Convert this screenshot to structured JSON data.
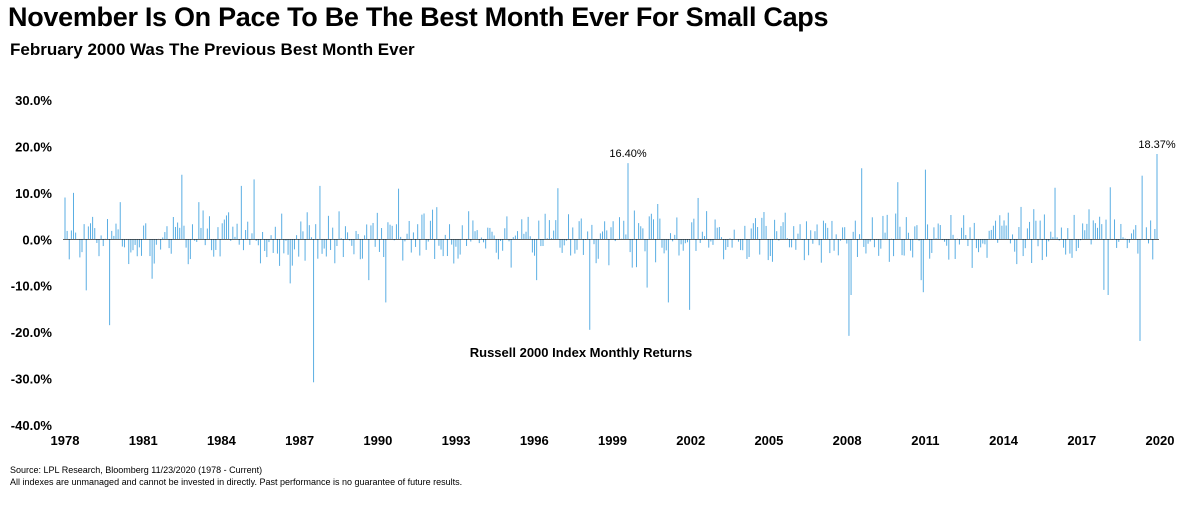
{
  "header": {
    "title": "November Is On Pace To Be The Best Month Ever For Small Caps",
    "subtitle": "February 2000 Was The Previous Best Month Ever"
  },
  "footer": {
    "source": "Source: LPL Research, Bloomberg 11/23/2020 (1978 - Current)",
    "disclaimer": "All indexes are unmanaged and cannot be invested in directly. Past performance is no guarantee of future results."
  },
  "colors": {
    "bar": "#5aaee3",
    "text": "#000000"
  },
  "chart_data": {
    "type": "bar",
    "series_label": "Russell 2000 Index Monthly Returns",
    "ylim": [
      -40,
      30
    ],
    "y_ticks": [
      30,
      20,
      10,
      0,
      -10,
      -20,
      -30,
      -40
    ],
    "y_tick_labels": [
      "30.0%",
      "20.0%",
      "10.0%",
      "0.0%",
      "-10.0%",
      "-20.0%",
      "-30.0%",
      "-40.0%"
    ],
    "x_tick_labels": [
      "1978",
      "1981",
      "1984",
      "1987",
      "1990",
      "1993",
      "1996",
      "1999",
      "2002",
      "2005",
      "2008",
      "2011",
      "2014",
      "2017",
      "2020"
    ],
    "x_range": [
      "1978-01",
      "2020-11"
    ],
    "grid": false,
    "annotations": [
      {
        "date": "2000-02",
        "value": 16.4,
        "text": "16.40%"
      },
      {
        "date": "2020-11",
        "value": 18.37,
        "text": "18.37%"
      }
    ],
    "key_values": [
      {
        "date": "1978-01",
        "value": 9.0
      },
      {
        "date": "1978-05",
        "value": 10.0
      },
      {
        "date": "1978-11",
        "value": -11.0
      },
      {
        "date": "1979-10",
        "value": -18.5
      },
      {
        "date": "1980-03",
        "value": 8.0
      },
      {
        "date": "1981-06",
        "value": -8.5
      },
      {
        "date": "1982-08",
        "value": 13.9
      },
      {
        "date": "1983-04",
        "value": 8.0
      },
      {
        "date": "1984-12",
        "value": 11.5
      },
      {
        "date": "1985-06",
        "value": 12.9
      },
      {
        "date": "1986-11",
        "value": -9.5
      },
      {
        "date": "1987-10",
        "value": -30.8
      },
      {
        "date": "1988-01",
        "value": 11.5
      },
      {
        "date": "1989-12",
        "value": -8.8
      },
      {
        "date": "1990-08",
        "value": -13.6
      },
      {
        "date": "1991-02",
        "value": 10.9
      },
      {
        "date": "1996-07",
        "value": -8.8
      },
      {
        "date": "1997-05",
        "value": 11.0
      },
      {
        "date": "1998-08",
        "value": -19.5
      },
      {
        "date": "2000-02",
        "value": 16.4
      },
      {
        "date": "2000-04",
        "value": -6.1
      },
      {
        "date": "2000-11",
        "value": -10.4
      },
      {
        "date": "2001-01",
        "value": 5.5
      },
      {
        "date": "2001-04",
        "value": 7.6
      },
      {
        "date": "2001-09",
        "value": -13.6
      },
      {
        "date": "2002-07",
        "value": -15.2
      },
      {
        "date": "2002-11",
        "value": 8.9
      },
      {
        "date": "2008-10",
        "value": -20.8
      },
      {
        "date": "2008-11",
        "value": -12.0
      },
      {
        "date": "2009-04",
        "value": 15.3
      },
      {
        "date": "2010-09",
        "value": 12.3
      },
      {
        "date": "2011-08",
        "value": -8.8
      },
      {
        "date": "2011-09",
        "value": -11.4
      },
      {
        "date": "2011-10",
        "value": 15.0
      },
      {
        "date": "2016-11",
        "value": 11.1
      },
      {
        "date": "2018-10",
        "value": -10.9
      },
      {
        "date": "2018-12",
        "value": -12.0
      },
      {
        "date": "2019-01",
        "value": 11.2
      },
      {
        "date": "2020-03",
        "value": -21.9
      },
      {
        "date": "2020-04",
        "value": 13.7
      },
      {
        "date": "2020-11",
        "value": 18.37
      }
    ]
  }
}
